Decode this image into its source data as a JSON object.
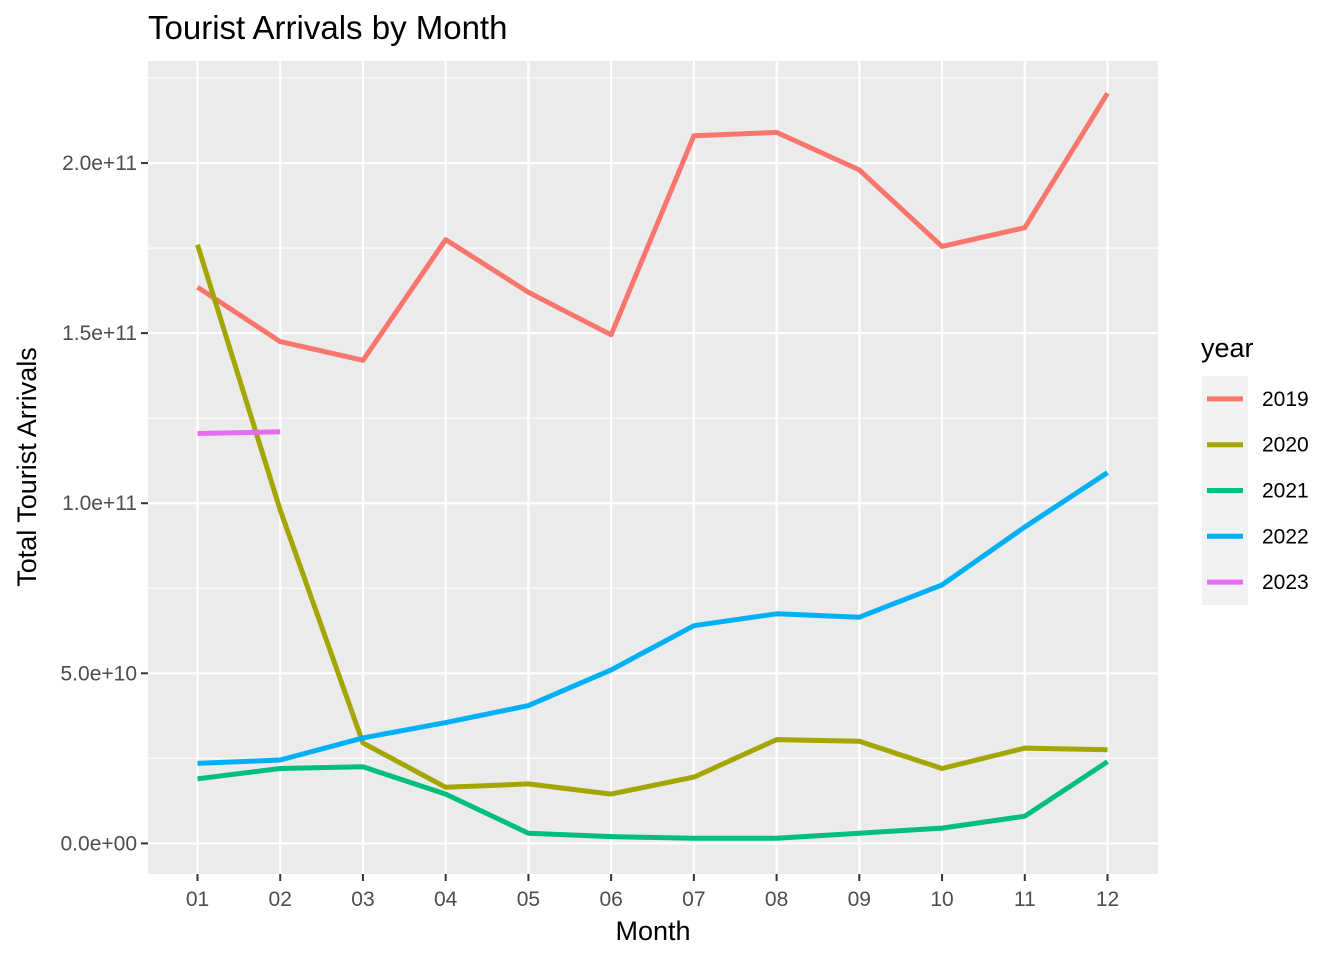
{
  "chart_data": {
    "type": "line",
    "title": "Tourist Arrivals by Month",
    "xlabel": "Month",
    "ylabel": "Total Tourist Arrivals",
    "categories": [
      "01",
      "02",
      "03",
      "04",
      "05",
      "06",
      "07",
      "08",
      "09",
      "10",
      "11",
      "12"
    ],
    "ylim": [
      -9000000000,
      230000000000
    ],
    "yticks": [
      0,
      50000000000,
      100000000000,
      150000000000,
      200000000000
    ],
    "ytick_labels": [
      "0.0e+00",
      "5.0e+10",
      "1.0e+11",
      "1.5e+11",
      "2.0e+11"
    ],
    "grid": true,
    "legend": {
      "title": "year",
      "position": "right"
    },
    "series": [
      {
        "name": "2019",
        "color": "#F8766D",
        "values": [
          163500000000,
          147500000000,
          142000000000,
          177500000000,
          162000000000,
          149500000000,
          208000000000,
          209000000000,
          198000000000,
          175500000000,
          181000000000,
          220500000000
        ]
      },
      {
        "name": "2020",
        "color": "#A3A500",
        "values": [
          176000000000,
          98000000000,
          29500000000,
          16500000000,
          17500000000,
          14500000000,
          19500000000,
          30500000000,
          30000000000,
          22000000000,
          28000000000,
          27500000000
        ]
      },
      {
        "name": "2021",
        "color": "#00BF7D",
        "values": [
          19000000000,
          22000000000,
          22500000000,
          14500000000,
          3000000000,
          2000000000,
          1500000000,
          1500000000,
          3000000000,
          4500000000,
          8000000000,
          24000000000
        ]
      },
      {
        "name": "2022",
        "color": "#00B0F6",
        "values": [
          23500000000,
          24500000000,
          31000000000,
          35500000000,
          40500000000,
          51000000000,
          64000000000,
          67500000000,
          66500000000,
          76000000000,
          93000000000,
          109000000000
        ]
      },
      {
        "name": "2023",
        "color": "#E76BF3",
        "values": [
          120500000000,
          121000000000,
          null,
          null,
          null,
          null,
          null,
          null,
          null,
          null,
          null,
          null
        ]
      }
    ]
  }
}
